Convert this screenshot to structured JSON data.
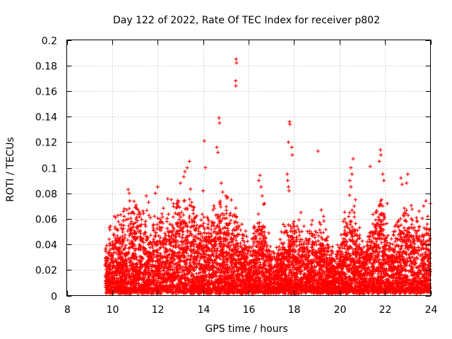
{
  "chart_data": {
    "type": "scatter",
    "title": "Day 122 of 2022, Rate Of TEC Index for receiver p802",
    "xlabel": "GPS time / hours",
    "ylabel": "ROTI / TECUs",
    "xlim": [
      8,
      24
    ],
    "ylim": [
      0,
      0.2
    ],
    "x_ticks": [
      {
        "value": 8,
        "label": "8"
      },
      {
        "value": 10,
        "label": "10"
      },
      {
        "value": 12,
        "label": "12"
      },
      {
        "value": 14,
        "label": "14"
      },
      {
        "value": 16,
        "label": "16"
      },
      {
        "value": 18,
        "label": "18"
      },
      {
        "value": 20,
        "label": "20"
      },
      {
        "value": 22,
        "label": "22"
      },
      {
        "value": 24,
        "label": "24"
      }
    ],
    "y_ticks": [
      {
        "value": 0,
        "label": "0"
      },
      {
        "value": 0.02,
        "label": "0.02"
      },
      {
        "value": 0.04,
        "label": "0.04"
      },
      {
        "value": 0.06,
        "label": "0.06"
      },
      {
        "value": 0.08,
        "label": "0.08"
      },
      {
        "value": 0.1,
        "label": "0.1"
      },
      {
        "value": 0.12,
        "label": "0.12"
      },
      {
        "value": 0.14,
        "label": "0.14"
      },
      {
        "value": 0.16,
        "label": "0.16"
      },
      {
        "value": 0.18,
        "label": "0.18"
      },
      {
        "value": 0.2,
        "label": "0.2"
      }
    ],
    "grid": true,
    "marker": "+",
    "color": "#ff0000",
    "series": [
      {
        "name": "ROTI",
        "points": [
          [
            15.45,
            0.185
          ],
          [
            15.47,
            0.182
          ],
          [
            15.43,
            0.168
          ],
          [
            15.44,
            0.164
          ],
          [
            14.7,
            0.139
          ],
          [
            14.72,
            0.135
          ],
          [
            14.6,
            0.116
          ],
          [
            14.65,
            0.112
          ],
          [
            14.05,
            0.121
          ],
          [
            14.1,
            0.1
          ],
          [
            17.8,
            0.136
          ],
          [
            17.82,
            0.134
          ],
          [
            17.75,
            0.12
          ],
          [
            17.9,
            0.116
          ],
          [
            17.92,
            0.11
          ],
          [
            17.7,
            0.095
          ],
          [
            17.72,
            0.09
          ],
          [
            17.75,
            0.085
          ],
          [
            17.78,
            0.082
          ],
          [
            19.05,
            0.113
          ],
          [
            21.8,
            0.114
          ],
          [
            21.82,
            0.11
          ],
          [
            21.75,
            0.105
          ],
          [
            21.9,
            0.095
          ],
          [
            21.95,
            0.09
          ],
          [
            20.6,
            0.107
          ],
          [
            20.5,
            0.1
          ],
          [
            20.55,
            0.095
          ],
          [
            20.45,
            0.09
          ],
          [
            20.5,
            0.085
          ],
          [
            21.35,
            0.101
          ],
          [
            22.7,
            0.092
          ],
          [
            22.75,
            0.087
          ],
          [
            23.0,
            0.095
          ],
          [
            22.95,
            0.088
          ],
          [
            23.8,
            0.074
          ],
          [
            13.4,
            0.105
          ],
          [
            13.3,
            0.1
          ],
          [
            13.2,
            0.097
          ],
          [
            13.15,
            0.093
          ],
          [
            13.0,
            0.088
          ],
          [
            12.0,
            0.085
          ],
          [
            11.9,
            0.08
          ],
          [
            16.5,
            0.094
          ],
          [
            16.45,
            0.09
          ],
          [
            16.55,
            0.085
          ],
          [
            10.7,
            0.083
          ],
          [
            10.75,
            0.08
          ],
          [
            10.1,
            0.062
          ],
          [
            10.15,
            0.061
          ],
          [
            20.7,
            0.075
          ],
          [
            20.65,
            0.07
          ],
          [
            21.85,
            0.075
          ],
          [
            21.9,
            0.07
          ],
          [
            22.1,
            0.072
          ],
          [
            11.5,
            0.078
          ],
          [
            11.6,
            0.073
          ],
          [
            12.6,
            0.075
          ],
          [
            14.0,
            0.082
          ],
          [
            14.8,
            0.088
          ],
          [
            15.0,
            0.078
          ],
          [
            16.6,
            0.078
          ],
          [
            16.7,
            0.072
          ],
          [
            18.3,
            0.065
          ],
          [
            19.2,
            0.067
          ],
          [
            19.3,
            0.062
          ],
          [
            23.5,
            0.066
          ],
          [
            23.7,
            0.07
          ],
          [
            24.0,
            0.072
          ]
        ],
        "generated_cloud": {
          "description": "dense band of ROTI points between 9.7 and 24 hours, mostly below 0.07 TECUs",
          "x_start": 9.7,
          "x_end": 24.0,
          "points_per_hour": 520,
          "activity_profile": [
            {
              "hour": 9.7,
              "level": 0.045
            },
            {
              "hour": 10.3,
              "level": 0.06
            },
            {
              "hour": 10.8,
              "level": 0.075
            },
            {
              "hour": 11.5,
              "level": 0.06
            },
            {
              "hour": 12.5,
              "level": 0.07
            },
            {
              "hour": 13.3,
              "level": 0.085
            },
            {
              "hour": 14.0,
              "level": 0.06
            },
            {
              "hour": 14.7,
              "level": 0.08
            },
            {
              "hour": 15.3,
              "level": 0.07
            },
            {
              "hour": 16.0,
              "level": 0.04
            },
            {
              "hour": 16.6,
              "level": 0.075
            },
            {
              "hour": 17.0,
              "level": 0.035
            },
            {
              "hour": 17.8,
              "level": 0.06
            },
            {
              "hour": 18.5,
              "level": 0.05
            },
            {
              "hour": 19.2,
              "level": 0.06
            },
            {
              "hour": 19.8,
              "level": 0.03
            },
            {
              "hour": 20.5,
              "level": 0.08
            },
            {
              "hour": 21.0,
              "level": 0.04
            },
            {
              "hour": 21.8,
              "level": 0.075
            },
            {
              "hour": 22.3,
              "level": 0.045
            },
            {
              "hour": 22.9,
              "level": 0.075
            },
            {
              "hour": 23.5,
              "level": 0.06
            },
            {
              "hour": 24.0,
              "level": 0.065
            }
          ]
        }
      }
    ]
  }
}
